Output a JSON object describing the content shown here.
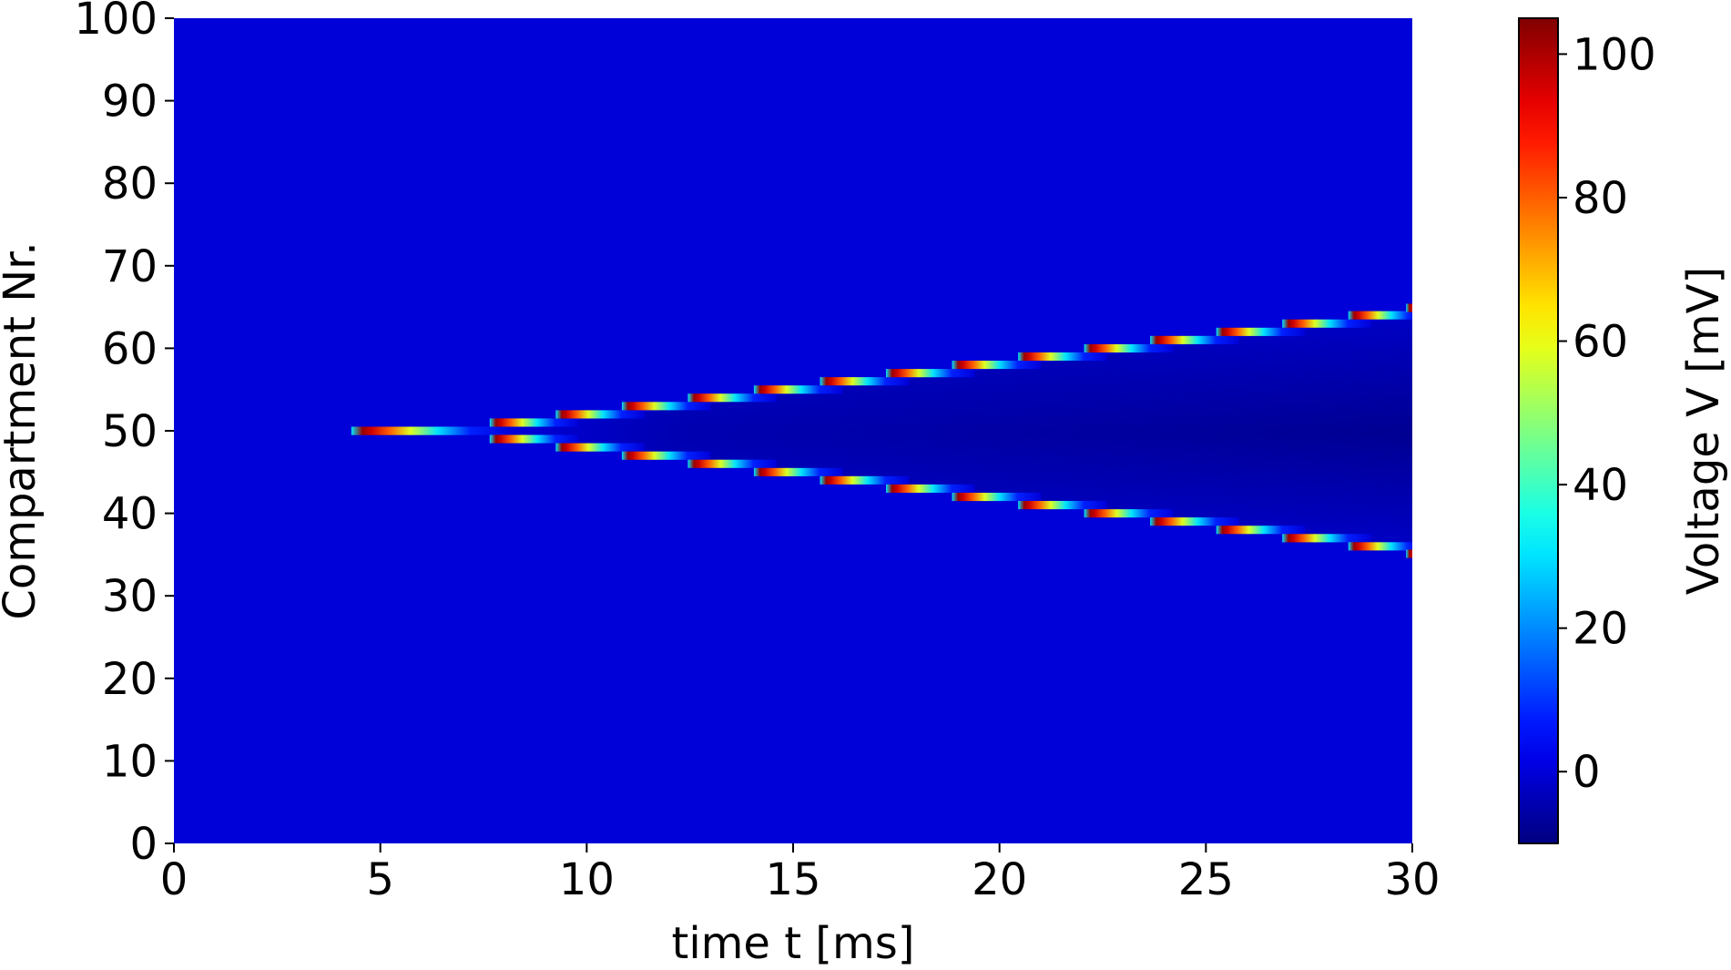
{
  "chart_data": {
    "type": "heatmap",
    "title": "",
    "xlabel": "time t [ms]",
    "ylabel": "Compartment Nr.",
    "xlim": [
      0,
      30
    ],
    "ylim": [
      0,
      100
    ],
    "xticks": [
      0,
      5,
      10,
      15,
      20,
      25,
      30
    ],
    "yticks": [
      0,
      10,
      20,
      30,
      40,
      50,
      60,
      70,
      80,
      90,
      100
    ],
    "grid": false,
    "colormap": "jet",
    "colorbar": {
      "label": "Voltage V [mV]",
      "vmin": -10,
      "vmax": 105,
      "ticks": [
        0,
        20,
        40,
        60,
        80,
        100
      ]
    },
    "resting_potential_mV": 0,
    "peak_potential_mV": 105,
    "stimulus": {
      "compartment": 50,
      "onset_ms": 5.2
    },
    "wavefronts": [
      {
        "name": "upward",
        "points": [
          [
            5.2,
            50
          ],
          [
            7.8,
            51
          ],
          [
            9.4,
            52
          ],
          [
            11.0,
            53
          ],
          [
            12.6,
            54
          ],
          [
            14.2,
            55
          ],
          [
            15.8,
            56
          ],
          [
            17.4,
            57
          ],
          [
            19.0,
            58
          ],
          [
            20.6,
            59
          ],
          [
            22.2,
            60
          ],
          [
            23.8,
            61
          ],
          [
            25.4,
            62
          ],
          [
            27.0,
            63
          ],
          [
            28.6,
            64
          ],
          [
            30,
            64.9
          ]
        ]
      },
      {
        "name": "downward",
        "points": [
          [
            5.2,
            50
          ],
          [
            7.8,
            49
          ],
          [
            9.4,
            48
          ],
          [
            11.0,
            47
          ],
          [
            12.6,
            46
          ],
          [
            14.2,
            45
          ],
          [
            15.8,
            44
          ],
          [
            17.4,
            43
          ],
          [
            19.0,
            42
          ],
          [
            20.6,
            41
          ],
          [
            22.2,
            40
          ],
          [
            23.8,
            39
          ],
          [
            25.4,
            38
          ],
          [
            27.0,
            37
          ],
          [
            28.6,
            36
          ],
          [
            30,
            35.1
          ]
        ]
      }
    ],
    "hyperpolarized_trough_mV": -8
  },
  "colors": {
    "resting": "#0000f4",
    "trough": "#00007f",
    "peak": "#800000"
  }
}
